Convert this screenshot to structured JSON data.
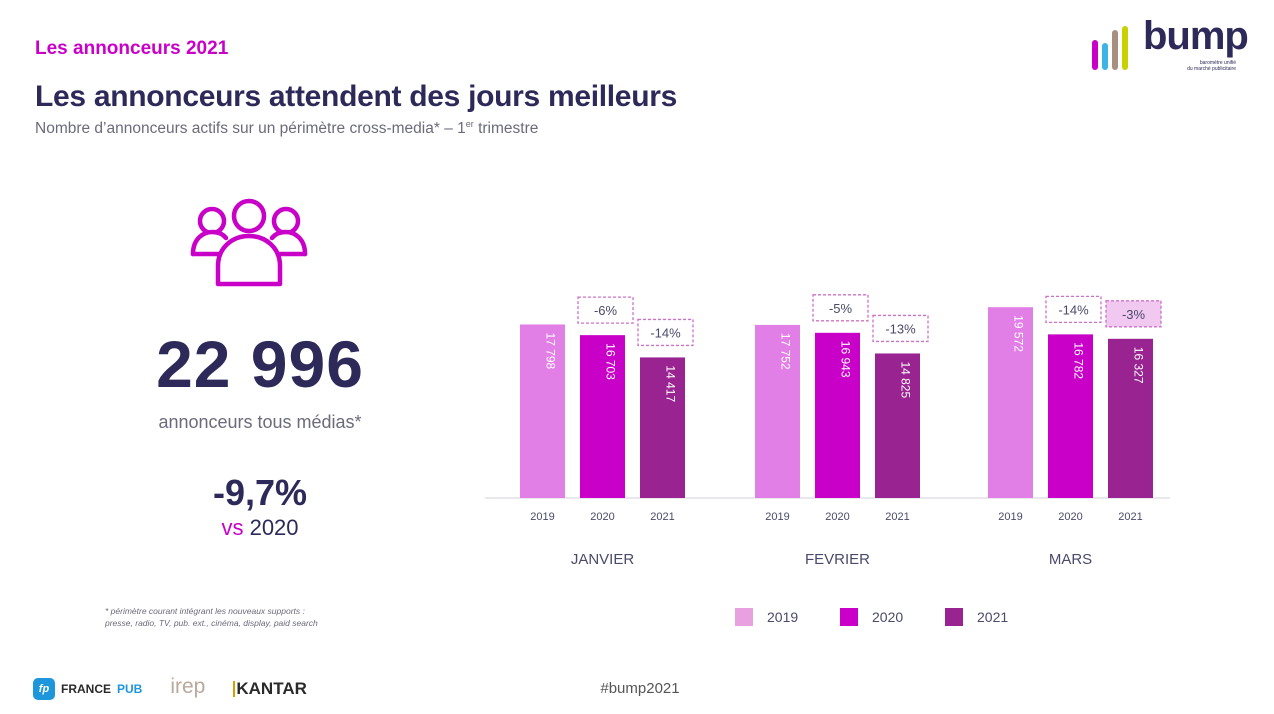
{
  "header": {
    "kicker": "Les annonceurs 2021",
    "title": "Les annonceurs attendent des jours meilleurs",
    "subtitle_main": "Nombre d’annonceurs actifs sur un périmètre cross-media* – 1",
    "subtitle_sup": "er",
    "subtitle_end": " trimestre"
  },
  "logo": {
    "name": "bump",
    "tagline_1": "baromètre unifié",
    "tagline_2": "du marché publicitaire",
    "bar_colors": [
      "#c800c8",
      "#3cb4e6",
      "#a89080",
      "#c8d200"
    ]
  },
  "kpi": {
    "icon": "people-group-icon",
    "total": "22 996",
    "total_label": "annonceurs tous médias*",
    "change": "-9,7%",
    "vs_prefix": "vs",
    "vs_year": "2020"
  },
  "footnote": {
    "line1": "* périmètre courant intégrant les nouveaux supports :",
    "line2": "presse, radio, TV, pub. ext., cinéma, display, paid search"
  },
  "chart_data": {
    "type": "bar",
    "title": "",
    "xlabel": "",
    "ylabel": "",
    "categories": [
      "JANVIER",
      "FEVRIER",
      "MARS"
    ],
    "series": [
      {
        "name": "2019",
        "color": "#e27fe6",
        "values": [
          17798,
          17752,
          19572
        ],
        "labels": [
          "17 798",
          "17 752",
          "19 572"
        ]
      },
      {
        "name": "2020",
        "color": "#c800c8",
        "values": [
          16703,
          16943,
          16782
        ],
        "labels": [
          "16 703",
          "16 943",
          "16 782"
        ]
      },
      {
        "name": "2021",
        "color": "#992491",
        "values": [
          14417,
          14825,
          16327
        ],
        "labels": [
          "14 417",
          "14 825",
          "16 327"
        ]
      }
    ],
    "annotations": [
      {
        "category": "JANVIER",
        "series": "2020",
        "text": "-6%"
      },
      {
        "category": "JANVIER",
        "series": "2021",
        "text": "-14%"
      },
      {
        "category": "FEVRIER",
        "series": "2020",
        "text": "-5%"
      },
      {
        "category": "FEVRIER",
        "series": "2021",
        "text": "-13%"
      },
      {
        "category": "MARS",
        "series": "2020",
        "text": "-14%"
      },
      {
        "category": "MARS",
        "series": "2021",
        "text": "-3%",
        "highlighted": true
      }
    ],
    "ylim": [
      0,
      20000
    ],
    "grid": false,
    "legend_position": "bottom-right"
  },
  "legend": [
    {
      "label": "2019",
      "color": "#e8a0e0"
    },
    {
      "label": "2020",
      "color": "#c800c8"
    },
    {
      "label": "2021",
      "color": "#992491"
    }
  ],
  "footer": {
    "partner_1a": "FRANCE",
    "partner_1b": "PUB",
    "partner_1_icon": "fp",
    "partner_2": "irep",
    "partner_3": "KANTAR",
    "hashtag": "#bump2021"
  }
}
